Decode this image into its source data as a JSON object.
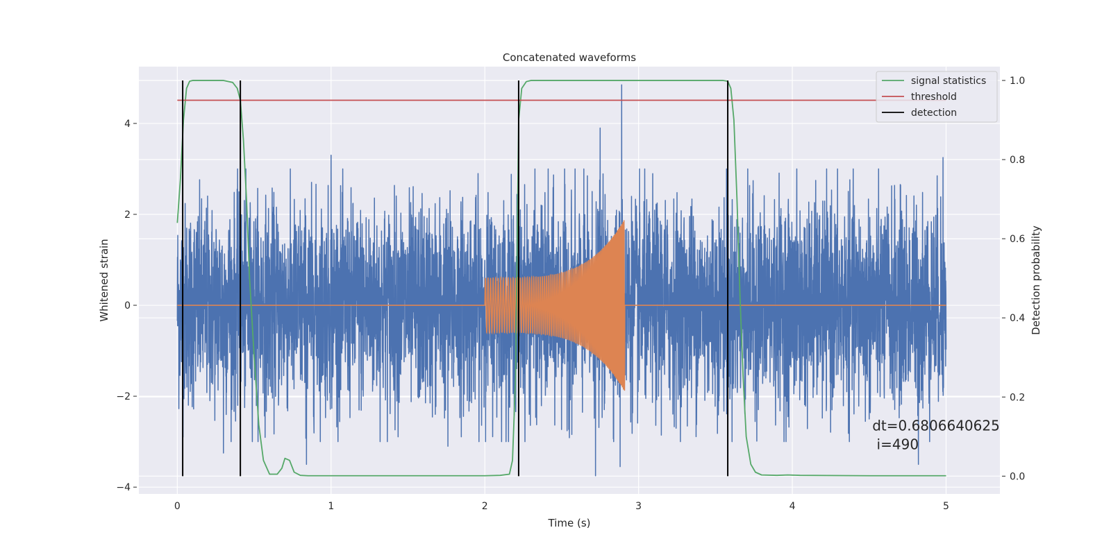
{
  "chart_data": {
    "type": "line",
    "title": "Concatenated waveforms",
    "xlabel": "Time (s)",
    "ylabel": "Whitened strain",
    "y2label": "Detection probability",
    "xlim": [
      -0.25,
      5.35
    ],
    "ylim": [
      -4.15,
      5.25
    ],
    "y2lim": [
      -0.045,
      1.035
    ],
    "x_ticks": [
      0,
      1,
      2,
      3,
      4,
      5
    ],
    "x_tick_labels": [
      "0",
      "1",
      "2",
      "3",
      "4",
      "5"
    ],
    "y_ticks": [
      -4,
      -2,
      0,
      2,
      4
    ],
    "y_tick_labels": [
      "−4",
      "−2",
      "0",
      "2",
      "4"
    ],
    "y2_ticks": [
      0.0,
      0.2,
      0.4,
      0.6,
      0.8,
      1.0
    ],
    "y2_tick_labels": [
      "0.0",
      "0.2",
      "0.4",
      "0.6",
      "0.8",
      "1.0"
    ],
    "grid": true,
    "legend_position": "top-right",
    "noise": {
      "color": "#4c72b0",
      "x_range": [
        0,
        5
      ],
      "typical_amplitude": 1.3,
      "peaks": [
        {
          "x": 2.89,
          "y": 4.85
        },
        {
          "x": 2.22,
          "y": 3.65
        },
        {
          "x": 2.75,
          "y": 3.9
        },
        {
          "x": 1.0,
          "y": 3.3
        },
        {
          "x": 4.98,
          "y": 3.25
        },
        {
          "x": 2.72,
          "y": -3.75
        },
        {
          "x": 2.88,
          "y": -3.55
        },
        {
          "x": 0.3,
          "y": -3.25
        },
        {
          "x": 0.84,
          "y": -3.5
        },
        {
          "x": 1.76,
          "y": -3.1
        },
        {
          "x": 4.82,
          "y": -3.5
        }
      ]
    },
    "chirp": {
      "color": "#dd8452",
      "x_range": [
        2.0,
        2.91
      ],
      "amplitude_start": 0.6,
      "amplitude_end": 1.9,
      "flat_value": 0
    },
    "series": [
      {
        "name": "signal statistics",
        "color": "#55a868",
        "axis": "right",
        "x": [
          0,
          0.02,
          0.04,
          0.06,
          0.08,
          0.1,
          0.15,
          0.2,
          0.3,
          0.36,
          0.39,
          0.41,
          0.43,
          0.45,
          0.47,
          0.5,
          0.53,
          0.56,
          0.6,
          0.65,
          0.68,
          0.7,
          0.73,
          0.76,
          0.8,
          0.85,
          1.0,
          1.5,
          2.0,
          2.1,
          2.16,
          2.18,
          2.2,
          2.22,
          2.24,
          2.27,
          2.3,
          2.5,
          3.0,
          3.5,
          3.55,
          3.58,
          3.6,
          3.62,
          3.64,
          3.66,
          3.68,
          3.7,
          3.73,
          3.76,
          3.8,
          3.9,
          3.97,
          4.05,
          4.5,
          5.0
        ],
        "y": [
          0.64,
          0.75,
          0.9,
          0.98,
          0.998,
          1.0,
          1.0,
          1.0,
          1.0,
          0.995,
          0.98,
          0.95,
          0.85,
          0.7,
          0.5,
          0.3,
          0.13,
          0.04,
          0.005,
          0.005,
          0.02,
          0.045,
          0.04,
          0.01,
          0.002,
          0.001,
          0.001,
          0.001,
          0.001,
          0.002,
          0.005,
          0.04,
          0.25,
          0.9,
          0.98,
          0.997,
          1.0,
          1.0,
          1.0,
          1.0,
          1.0,
          0.998,
          0.98,
          0.9,
          0.7,
          0.45,
          0.25,
          0.1,
          0.03,
          0.01,
          0.003,
          0.002,
          0.003,
          0.002,
          0.001,
          0.001
        ]
      },
      {
        "name": "threshold",
        "color": "#c44e52",
        "axis": "right",
        "x": [
          0,
          5
        ],
        "y": [
          0.95,
          0.95
        ]
      },
      {
        "name": "detection",
        "color": "#000000",
        "axis": "right",
        "lines_at_x": [
          0.035,
          0.41,
          2.22,
          3.58
        ],
        "y_range": [
          0,
          1
        ]
      }
    ],
    "annotation": {
      "line1": "dt=0.6806640625",
      "line2": " i=490",
      "x": 4.52,
      "y": -2.75
    }
  }
}
